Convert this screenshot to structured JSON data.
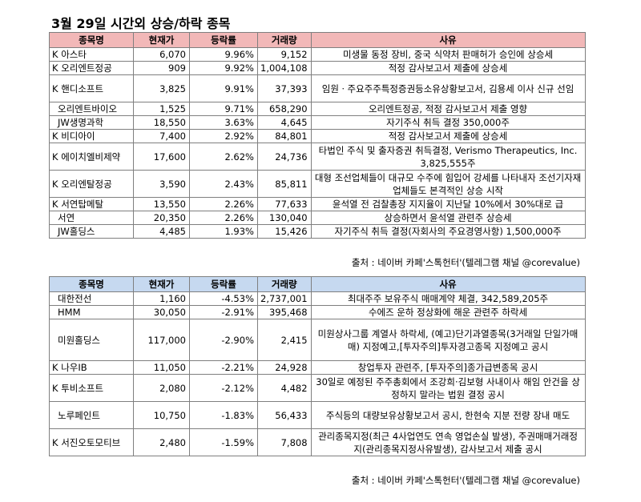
{
  "title": "3월 29일  시간외 상승/하락 종목",
  "headers": {
    "name": "종목명",
    "price": "현재가",
    "rate": "등락률",
    "volume": "거래량",
    "reason": "사유"
  },
  "rise_rows": [
    {
      "name": "K 아스타",
      "price": "6,070",
      "rate": "9.96%",
      "volume": "9,152",
      "reason": "미생물 동정 장비, 중국 식약처 판매허가 승인에 상승세"
    },
    {
      "name": "K 오리엔트정공",
      "price": "909",
      "rate": "9.92%",
      "volume": "1,004,108",
      "reason": "적정 감사보고서 제출에 상승세"
    },
    {
      "name": "K 핸디소프트",
      "price": "3,825",
      "rate": "9.91%",
      "volume": "37,393",
      "reason": "임원ㆍ주요주주특정증권등소유상황보고서, 김용세 이사 신규 선임"
    },
    {
      "name": "오리엔트바이오",
      "price": "1,525",
      "rate": "9.71%",
      "volume": "658,290",
      "reason": "오리엔트정공, 적정 감사보고서 제출 영향"
    },
    {
      "name": "JW생명과학",
      "price": "18,550",
      "rate": "3.63%",
      "volume": "4,645",
      "reason": "자기주식 취득 결정 350,000주"
    },
    {
      "name": "K 비디아이",
      "price": "7,400",
      "rate": "2.92%",
      "volume": "84,801",
      "reason": "적정 감사보고서 제출에 상승세"
    },
    {
      "name": "K 에이치엘비제약",
      "price": "17,600",
      "rate": "2.62%",
      "volume": "24,736",
      "reason": "타법인 주식 및 출자증권 취득결정, Verismo Therapeutics, Inc. 3,825,555주"
    },
    {
      "name": "K 오리엔탈정공",
      "price": "3,590",
      "rate": "2.43%",
      "volume": "85,811",
      "reason": "대형 조선업체들이 대규모 수주에 힘입어 강세를 나타내자 조선기자재 업체들도 본격적인 상승 시작"
    },
    {
      "name": "K 서연탑메탈",
      "price": "13,550",
      "rate": "2.26%",
      "volume": "77,633",
      "reason": "윤석열 전 검찰총장 지지율이 지난달 10%에서 30%대로 급"
    },
    {
      "name": "서연",
      "price": "20,350",
      "rate": "2.26%",
      "volume": "130,040",
      "reason": "상승하면서 윤석열 관련주 상승세"
    },
    {
      "name": "JW홀딩스",
      "price": "4,485",
      "rate": "1.93%",
      "volume": "15,426",
      "reason": "자기주식 취득 결정(자회사의 주요경영사항) 1,500,000주"
    }
  ],
  "fall_rows": [
    {
      "name": "대한전선",
      "price": "1,160",
      "rate": "-4.53%",
      "volume": "2,737,001",
      "reason": "최대주주 보유주식 매매계약 체결, 342,589,205주"
    },
    {
      "name": "HMM",
      "price": "30,050",
      "rate": "-2.91%",
      "volume": "395,468",
      "reason": "수에즈 운하 정상화에 해운 관련주 하락세"
    },
    {
      "name": "미원홀딩스",
      "price": "117,000",
      "rate": "-2.90%",
      "volume": "2,415",
      "reason": "미원상사그룹 계열사 하락세, (예고)단기과열종목(3거래일 단일가매매) 지정예고,[투자주의]투자경고종목 지정예고 공시"
    },
    {
      "name": "K 나우IB",
      "price": "11,050",
      "rate": "-2.21%",
      "volume": "24,928",
      "reason": "창업투자 관련주, [투자주의]종가급변종목 공시"
    },
    {
      "name": "K 투비소프트",
      "price": "2,080",
      "rate": "-2.12%",
      "volume": "4,482",
      "reason": "30일로 예정된 주주총회에서 조강희·김보형 사내이사 해임 안건을 상정하지 말라는 법원 결정 공시"
    },
    {
      "name": "노루페인트",
      "price": "10,750",
      "rate": "-1.83%",
      "volume": "56,433",
      "reason": "주식등의 대량보유상황보고서 공시, 한현숙 지분 전량 장내 매도"
    },
    {
      "name": "K 서진오토모티브",
      "price": "2,480",
      "rate": "-1.59%",
      "volume": "7,808",
      "reason": "관리종목지정(최근 4사업연도 연속 영업손실 발생), 주권매매거래정지(관리종목지정사유발생), 감사보고서 제출 공시"
    }
  ],
  "source": "출처 : 네이버 카페'스톡헌터'(텔레그램 채널 @corevalue)"
}
